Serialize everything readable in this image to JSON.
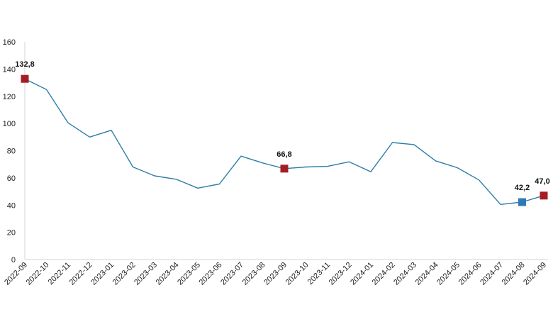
{
  "chart_data": {
    "type": "line",
    "title": "",
    "xlabel": "",
    "ylabel": "",
    "ylim": [
      0,
      160
    ],
    "yticks": [
      0,
      20,
      40,
      60,
      80,
      100,
      120,
      140,
      160
    ],
    "grid": false,
    "legend": "none",
    "line_color": "#2e7da6",
    "categories": [
      "2022-09",
      "2022-10",
      "2022-11",
      "2022-12",
      "2023-01",
      "2023-02",
      "2023-03",
      "2023-04",
      "2023-05",
      "2023-06",
      "2023-07",
      "2023-08",
      "2023-09",
      "2023-10",
      "2023-11",
      "2023-12",
      "2024-01",
      "2024-02",
      "2024-03",
      "2024-04",
      "2024-05",
      "2024-06",
      "2024-07",
      "2024-08",
      "2024-09"
    ],
    "series": [
      {
        "values": [
          132.8,
          125.0,
          100.5,
          90.0,
          95.0,
          68.0,
          61.5,
          59.0,
          52.5,
          55.5,
          76.0,
          71.0,
          66.8,
          68.0,
          68.5,
          71.8,
          64.5,
          86.0,
          84.5,
          72.5,
          67.5,
          58.5,
          40.5,
          42.2,
          47.0
        ]
      }
    ],
    "highlighted_points": [
      {
        "category": "2022-09",
        "value": 132.8,
        "label": "132,8",
        "color": "#a51d24"
      },
      {
        "category": "2023-09",
        "value": 66.8,
        "label": "66,8",
        "color": "#a51d24"
      },
      {
        "category": "2024-08",
        "value": 42.2,
        "label": "42,2",
        "color": "#2e7ab8"
      },
      {
        "category": "2024-09",
        "value": 47.0,
        "label": "47,0",
        "color": "#a51d24"
      }
    ]
  }
}
